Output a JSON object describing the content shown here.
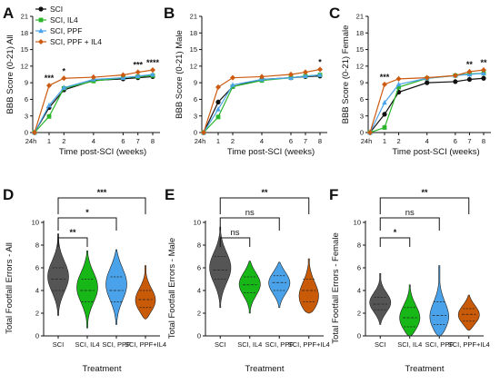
{
  "figure": {
    "panels": [
      "A",
      "B",
      "C",
      "D",
      "E",
      "F"
    ],
    "legend": [
      {
        "name": "SCI",
        "color": "#111111",
        "marker": "circle"
      },
      {
        "name": "SCI, IL4",
        "color": "#2bb52b",
        "marker": "square"
      },
      {
        "name": "SCI, PPF",
        "color": "#4aa3ea",
        "marker": "triangle"
      },
      {
        "name": "SCI, PPF + IL4",
        "color": "#cc5a10",
        "marker": "diamond"
      }
    ],
    "violin_colors": [
      "#555555",
      "#16b716",
      "#4aa3ea",
      "#c95a08"
    ]
  },
  "chart_data": [
    {
      "panel": "A",
      "type": "line",
      "ylabel": "BBB Score (0-21) All",
      "xlabel": "Time post-SCI (weeks)",
      "x": [
        "24h",
        "1",
        "2",
        "4",
        "6",
        "7",
        "8"
      ],
      "ylim": [
        0,
        21
      ],
      "yticks": [
        0,
        3,
        6,
        9,
        12,
        15,
        18,
        21
      ],
      "series": [
        {
          "name": "SCI",
          "values": [
            0,
            4.5,
            7.7,
            9.4,
            9.7,
            9.9,
            10.1
          ]
        },
        {
          "name": "SCI, IL4",
          "values": [
            0,
            2.9,
            8.0,
            9.3,
            9.9,
            10.1,
            10.3
          ]
        },
        {
          "name": "SCI, PPF",
          "values": [
            0,
            4.9,
            8.1,
            9.6,
            9.9,
            10.2,
            10.5
          ]
        },
        {
          "name": "SCI, PPF + IL4",
          "values": [
            0,
            8.5,
            9.8,
            10.0,
            10.4,
            10.9,
            11.3
          ]
        }
      ],
      "annotations": [
        {
          "x": "1",
          "text": "***"
        },
        {
          "x": "2",
          "text": "*"
        },
        {
          "x": "7",
          "text": "***"
        },
        {
          "x": "8",
          "text": "****"
        }
      ]
    },
    {
      "panel": "B",
      "type": "line",
      "ylabel": "BBB Score (0-21) Male",
      "xlabel": "Time post-SCI (weeks)",
      "x": [
        "24h",
        "1",
        "2",
        "4",
        "6",
        "7",
        "8"
      ],
      "ylim": [
        0,
        21
      ],
      "yticks": [
        0,
        3,
        6,
        9,
        12,
        15,
        18,
        21
      ],
      "series": [
        {
          "name": "SCI",
          "values": [
            0,
            5.5,
            8.3,
            9.6,
            9.9,
            10.1,
            10.2
          ]
        },
        {
          "name": "SCI, IL4",
          "values": [
            0,
            2.8,
            8.3,
            9.4,
            9.9,
            10.2,
            10.4
          ]
        },
        {
          "name": "SCI, PPF",
          "values": [
            0,
            4.2,
            8.6,
            9.6,
            9.9,
            10.2,
            10.4
          ]
        },
        {
          "name": "SCI, PPF + IL4",
          "values": [
            0,
            8.2,
            9.9,
            10.1,
            10.5,
            10.9,
            11.4
          ]
        }
      ],
      "annotations": [
        {
          "x": "8",
          "text": "*"
        }
      ]
    },
    {
      "panel": "C",
      "type": "line",
      "ylabel": "BBB Score (0-21) Female",
      "xlabel": "Time post-SCI (weeks)",
      "x": [
        "24h",
        "1",
        "2",
        "4",
        "6",
        "7",
        "8"
      ],
      "ylim": [
        0,
        21
      ],
      "yticks": [
        0,
        3,
        6,
        9,
        12,
        15,
        18,
        21
      ],
      "series": [
        {
          "name": "SCI",
          "values": [
            0,
            3.3,
            7.3,
            9.0,
            9.2,
            9.6,
            9.8
          ]
        },
        {
          "name": "SCI, IL4",
          "values": [
            0,
            0.9,
            8.2,
            9.8,
            10.3,
            10.6,
            10.7
          ]
        },
        {
          "name": "SCI, PPF",
          "values": [
            0,
            5.4,
            8.7,
            9.8,
            10.3,
            10.5,
            10.7
          ]
        },
        {
          "name": "SCI, PPF + IL4",
          "values": [
            0,
            8.7,
            9.7,
            9.9,
            10.3,
            11.0,
            11.3
          ]
        }
      ],
      "annotations": [
        {
          "x": "1",
          "text": "***"
        },
        {
          "x": "7",
          "text": "**"
        },
        {
          "x": "8",
          "text": "**"
        }
      ]
    },
    {
      "panel": "D",
      "type": "violin",
      "ylabel": "Total Footfall Errors - All",
      "xlabel": "Treatment",
      "categories": [
        "SCI",
        "SCI, IL4",
        "SCI, PPF",
        "SCI, PPF+IL4"
      ],
      "ylim": [
        0,
        10
      ],
      "yticks": [
        0,
        2,
        4,
        6,
        8,
        10
      ],
      "violins": [
        {
          "min": 1.8,
          "max": 9.0,
          "q1": 4.0,
          "median": 5.0,
          "q3": 6.0,
          "mode": 5.2
        },
        {
          "min": 0.7,
          "max": 7.5,
          "q1": 3.0,
          "median": 4.0,
          "q3": 5.0,
          "mode": 4.3
        },
        {
          "min": 1.0,
          "max": 7.6,
          "q1": 3.0,
          "median": 4.0,
          "q3": 5.2,
          "mode": 4.6
        },
        {
          "min": 1.5,
          "max": 6.2,
          "q1": 2.5,
          "median": 3.2,
          "q3": 4.0,
          "mode": 3.0
        }
      ],
      "comparisons": [
        {
          "from": "SCI",
          "to": "SCI, IL4",
          "label": "**"
        },
        {
          "from": "SCI",
          "to": "SCI, PPF",
          "label": "*"
        },
        {
          "from": "SCI",
          "to": "SCI, PPF+IL4",
          "label": "***"
        }
      ]
    },
    {
      "panel": "E",
      "type": "violin",
      "ylabel": "Total Footfall Errors - Male",
      "xlabel": "Treatment",
      "categories": [
        "SCI",
        "SCI, IL4",
        "SCI, PPF",
        "SCI, PPF+IL4"
      ],
      "ylim": [
        0,
        10
      ],
      "yticks": [
        0,
        2,
        4,
        6,
        8,
        10
      ],
      "violins": [
        {
          "min": 2.5,
          "max": 9.6,
          "q1": 5.0,
          "median": 5.8,
          "q3": 7.0,
          "mode": 6.0
        },
        {
          "min": 2.0,
          "max": 6.6,
          "q1": 3.8,
          "median": 4.5,
          "q3": 5.2,
          "mode": 4.6
        },
        {
          "min": 2.5,
          "max": 6.5,
          "q1": 4.0,
          "median": 4.7,
          "q3": 5.3,
          "mode": 4.7
        },
        {
          "min": 2.0,
          "max": 6.8,
          "q1": 3.0,
          "median": 4.0,
          "q3": 5.0,
          "mode": 3.2
        }
      ],
      "comparisons": [
        {
          "from": "SCI",
          "to": "SCI, IL4",
          "label": "ns"
        },
        {
          "from": "SCI",
          "to": "SCI, PPF",
          "label": "ns"
        },
        {
          "from": "SCI",
          "to": "SCI, PPF+IL4",
          "label": "**"
        }
      ]
    },
    {
      "panel": "F",
      "type": "violin",
      "ylabel": "Total Footfall Errors - Female",
      "xlabel": "Treatment",
      "categories": [
        "SCI",
        "SCI, IL4",
        "SCI, PPF",
        "SCI, PPF+IL4"
      ],
      "ylim": [
        0,
        10
      ],
      "yticks": [
        0,
        2,
        4,
        6,
        8,
        10
      ],
      "violins": [
        {
          "min": 1.0,
          "max": 5.5,
          "q1": 2.3,
          "median": 2.8,
          "q3": 3.4,
          "mode": 2.9
        },
        {
          "min": 0.0,
          "max": 4.5,
          "q1": 0.8,
          "median": 1.6,
          "q3": 2.5,
          "mode": 1.4
        },
        {
          "min": 0.0,
          "max": 6.2,
          "q1": 1.0,
          "median": 1.8,
          "q3": 3.0,
          "mode": 1.4
        },
        {
          "min": 0.5,
          "max": 3.6,
          "q1": 1.3,
          "median": 1.9,
          "q3": 2.4,
          "mode": 1.8
        }
      ],
      "comparisons": [
        {
          "from": "SCI",
          "to": "SCI, IL4",
          "label": "*"
        },
        {
          "from": "SCI",
          "to": "SCI, PPF",
          "label": "ns"
        },
        {
          "from": "SCI",
          "to": "SCI, PPF+IL4",
          "label": "**"
        }
      ]
    }
  ]
}
